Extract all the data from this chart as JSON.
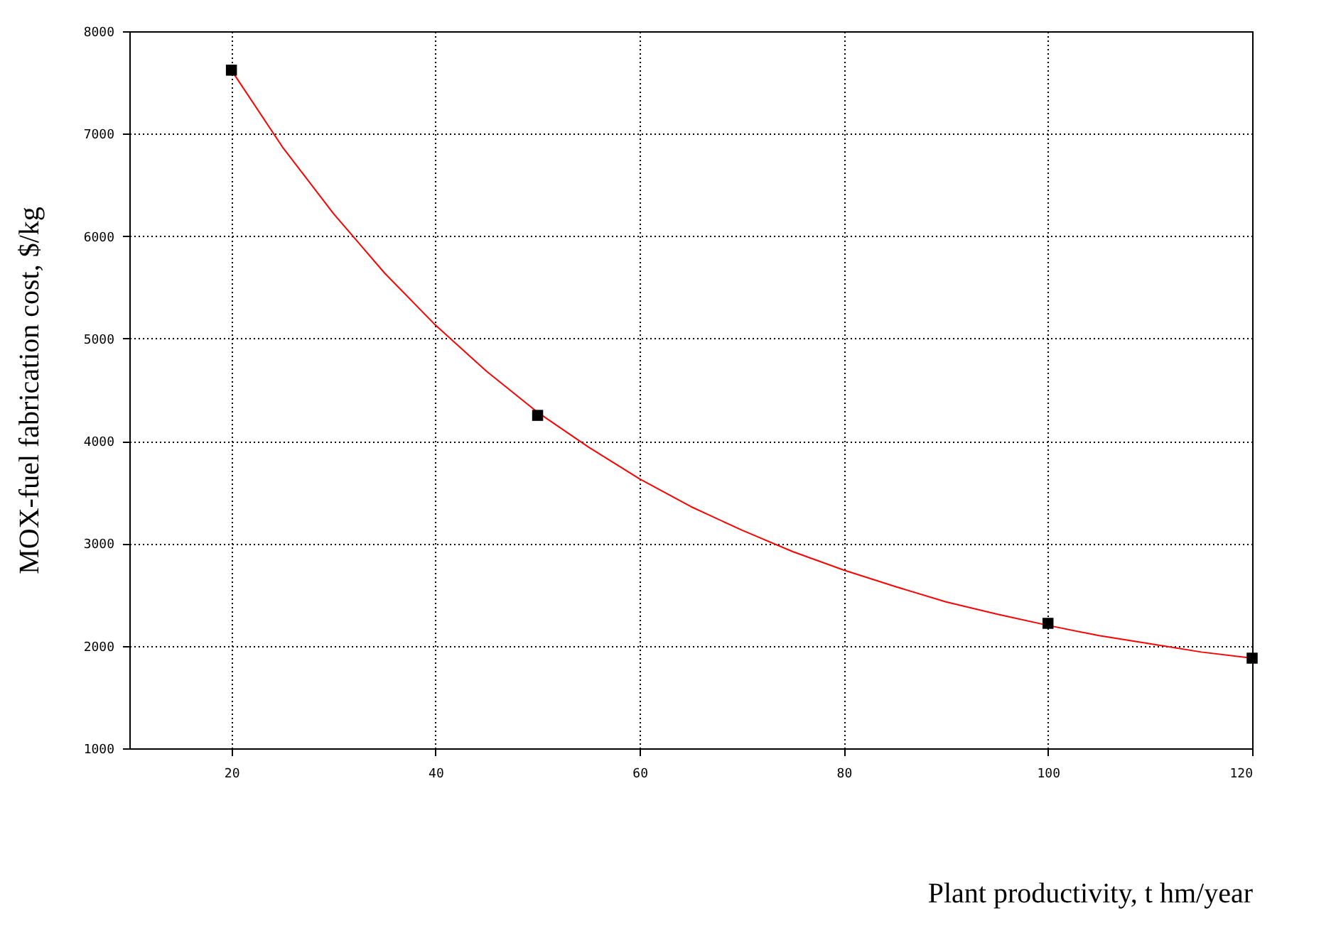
{
  "chart_data": {
    "type": "scatter",
    "xlabel": "Plant productivity, t hm/year",
    "ylabel": "MOX-fuel fabrication cost, $/kg",
    "xlim": [
      10,
      120
    ],
    "xticks": [
      20,
      40,
      60,
      80,
      100,
      120
    ],
    "ylim": [
      1000,
      8000
    ],
    "yticks": [
      1000,
      2000,
      3000,
      4000,
      5000,
      6000,
      7000,
      8000
    ],
    "grid": true,
    "series": [
      {
        "color": "#000000",
        "marker": "square",
        "x": [
          20,
          50,
          100,
          120
        ],
        "values": [
          7620,
          4250,
          2220,
          1880
        ]
      },
      {
        "type": "line",
        "color": "#ff0000",
        "marker": "none",
        "line_style": "solid",
        "x": [
          20,
          25,
          30,
          35,
          40,
          45,
          50,
          55,
          60,
          65,
          70,
          75,
          80,
          85,
          90,
          95,
          100,
          105,
          110,
          115,
          120
        ],
        "values": [
          7620,
          6870,
          6220,
          5640,
          5130,
          4680,
          4280,
          3940,
          3630,
          3360,
          3130,
          2920,
          2740,
          2580,
          2430,
          2310,
          2200,
          2100,
          2020,
          1940,
          1880
        ]
      }
    ]
  }
}
